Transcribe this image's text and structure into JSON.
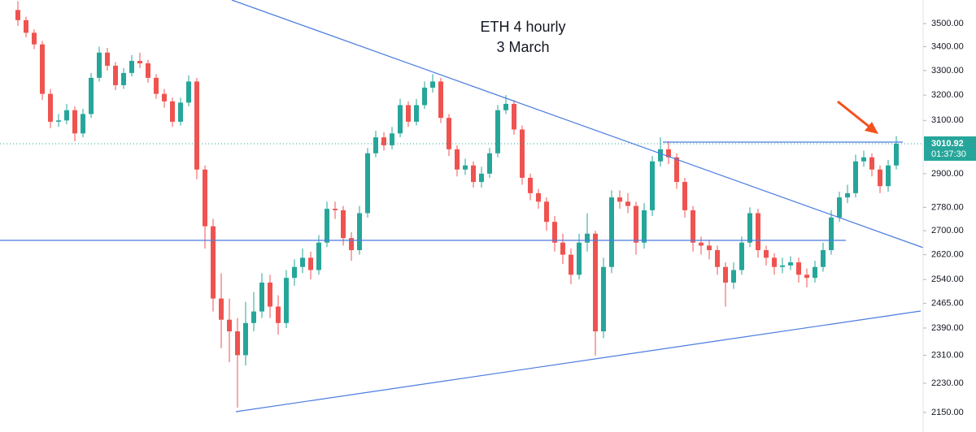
{
  "chart_data": {
    "type": "candlestick",
    "title": "ETH 4 hourly",
    "subtitle": "3 March",
    "log_scale": true,
    "ylim": [
      2098,
      3605
    ],
    "yticks": [
      {
        "value": 3500,
        "label": "3500.00"
      },
      {
        "value": 3400,
        "label": "3400.00"
      },
      {
        "value": 3300,
        "label": "3300.00"
      },
      {
        "value": 3200,
        "label": "3200.00"
      },
      {
        "value": 3100,
        "label": "3100.00"
      },
      {
        "value": 2900,
        "label": "2900.00"
      },
      {
        "value": 2780,
        "label": "2780.00"
      },
      {
        "value": 2700,
        "label": "2700.00"
      },
      {
        "value": 2620,
        "label": "2620.00"
      },
      {
        "value": 2540,
        "label": "2540.00"
      },
      {
        "value": 2465,
        "label": "2465.00"
      },
      {
        "value": 2390,
        "label": "2390.00"
      },
      {
        "value": 2310,
        "label": "2310.00"
      },
      {
        "value": 2230,
        "label": "2230.00"
      },
      {
        "value": 2150,
        "label": "2150.00"
      }
    ],
    "up_color": "#26a69a",
    "down_color": "#ef5350",
    "countdown": "01:37:30",
    "open": [
      3560,
      3515,
      3460,
      3410,
      3205,
      3095,
      3100,
      3140,
      3050,
      3125,
      3270,
      3375,
      3320,
      3240,
      3290,
      3340,
      3330,
      3270,
      3205,
      3175,
      3095,
      3170,
      3255,
      2915,
      2715,
      2480,
      2415,
      2380,
      2310,
      2405,
      2440,
      2530,
      2455,
      2405,
      2545,
      2580,
      2610,
      2570,
      2660,
      2775,
      2770,
      2675,
      2635,
      2760,
      2975,
      3035,
      3005,
      3050,
      3160,
      3095,
      3160,
      3230,
      3255,
      3110,
      2990,
      2915,
      2930,
      2870,
      2900,
      2975,
      3140,
      3165,
      3065,
      2885,
      2830,
      2800,
      2730,
      2660,
      2620,
      2555,
      2660,
      2690,
      2380,
      2580,
      2815,
      2800,
      2785,
      2660,
      2770,
      2945,
      2990,
      2960,
      2870,
      2770,
      2660,
      2650,
      2635,
      2580,
      2530,
      2570,
      2660,
      2760,
      2635,
      2610,
      2580,
      2585,
      2595,
      2555,
      2545,
      2580,
      2635,
      2745,
      2815,
      2830,
      2945,
      2960,
      2915,
      2855,
      2930
    ],
    "high": [
      3600,
      3530,
      3475,
      3425,
      3225,
      3125,
      3165,
      3155,
      3145,
      3290,
      3400,
      3395,
      3335,
      3310,
      3365,
      3375,
      3345,
      3285,
      3225,
      3190,
      3190,
      3280,
      3270,
      2930,
      2740,
      2560,
      2480,
      2420,
      2470,
      2500,
      2560,
      2555,
      2490,
      2570,
      2605,
      2640,
      2630,
      2685,
      2800,
      2800,
      2785,
      2695,
      2785,
      2995,
      3060,
      3055,
      3075,
      3185,
      3175,
      3185,
      3255,
      3285,
      3270,
      3125,
      3005,
      2955,
      2945,
      2925,
      2995,
      3160,
      3200,
      3180,
      3080,
      2900,
      2845,
      2815,
      2750,
      2690,
      2640,
      2690,
      2760,
      2700,
      2610,
      2840,
      2840,
      2830,
      2800,
      2795,
      2965,
      3035,
      3020,
      2975,
      2885,
      2785,
      2680,
      2670,
      2650,
      2595,
      2595,
      2680,
      2780,
      2775,
      2650,
      2625,
      2610,
      2615,
      2610,
      2575,
      2600,
      2660,
      2770,
      2835,
      2860,
      2970,
      2985,
      2975,
      2930,
      2950,
      3040
    ],
    "low": [
      3490,
      3440,
      3390,
      3180,
      3070,
      3075,
      3085,
      3020,
      3035,
      3110,
      3255,
      3300,
      3220,
      3225,
      3275,
      3310,
      3250,
      3185,
      3150,
      3075,
      3080,
      3155,
      2880,
      2640,
      2440,
      2330,
      2290,
      2163,
      2280,
      2380,
      2420,
      2420,
      2370,
      2390,
      2520,
      2560,
      2540,
      2555,
      2645,
      2740,
      2650,
      2600,
      2620,
      2745,
      2960,
      2985,
      2990,
      3035,
      3075,
      3080,
      3145,
      3210,
      3090,
      2965,
      2890,
      2895,
      2850,
      2850,
      2885,
      2960,
      3125,
      3045,
      2860,
      2805,
      2775,
      2700,
      2630,
      2590,
      2525,
      2540,
      2630,
      2309,
      2360,
      2560,
      2775,
      2760,
      2620,
      2640,
      2750,
      2925,
      2935,
      2845,
      2745,
      2630,
      2620,
      2605,
      2555,
      2455,
      2510,
      2555,
      2645,
      2610,
      2585,
      2555,
      2560,
      2570,
      2530,
      2515,
      2530,
      2565,
      2620,
      2730,
      2795,
      2815,
      2925,
      2890,
      2830,
      2835,
      2915
    ],
    "close": [
      3515,
      3460,
      3410,
      3205,
      3095,
      3100,
      3140,
      3050,
      3125,
      3270,
      3375,
      3320,
      3240,
      3290,
      3340,
      3330,
      3270,
      3205,
      3175,
      3095,
      3170,
      3255,
      2915,
      2715,
      2480,
      2415,
      2380,
      2310,
      2405,
      2440,
      2530,
      2455,
      2405,
      2545,
      2580,
      2610,
      2570,
      2660,
      2775,
      2770,
      2675,
      2635,
      2760,
      2975,
      3035,
      3005,
      3050,
      3160,
      3095,
      3160,
      3230,
      3255,
      3110,
      2990,
      2915,
      2930,
      2870,
      2900,
      2975,
      3140,
      3165,
      3065,
      2885,
      2830,
      2800,
      2730,
      2660,
      2620,
      2555,
      2660,
      2690,
      2380,
      2580,
      2815,
      2800,
      2785,
      2660,
      2770,
      2945,
      2990,
      2960,
      2870,
      2770,
      2660,
      2650,
      2635,
      2580,
      2530,
      2570,
      2660,
      2760,
      2635,
      2610,
      2580,
      2585,
      2595,
      2555,
      2545,
      2580,
      2635,
      2745,
      2815,
      2830,
      2945,
      2960,
      2915,
      2855,
      2930,
      3010.92
    ]
  }
}
